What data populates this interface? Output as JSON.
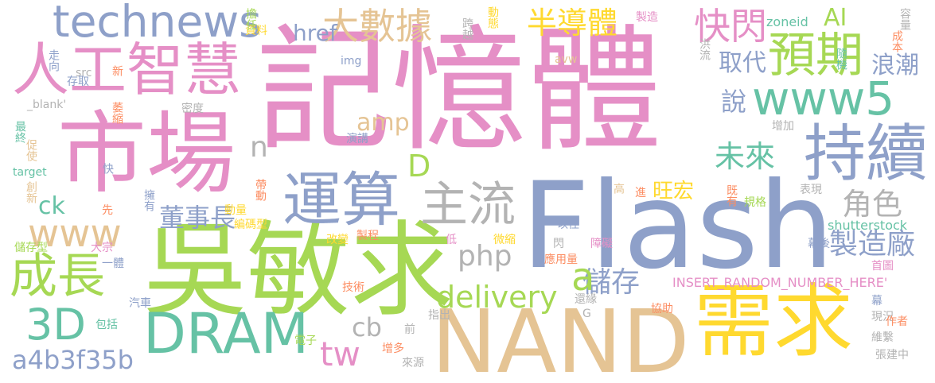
{
  "palette": {
    "pink": "#e58fc6",
    "purple": "#8ea0c9",
    "green": "#a6d854",
    "yellow": "#ffd92f",
    "tan": "#e5c494",
    "teal": "#66c2a5",
    "orange": "#fc8d62",
    "gray": "#b3b3b3"
  },
  "words": [
    {
      "text": "記憶體",
      "color": "pink"
    },
    {
      "text": "Flash",
      "color": "purple"
    },
    {
      "text": "吳敏求",
      "color": "green"
    },
    {
      "text": "NAND",
      "color": "tan"
    },
    {
      "text": "市場",
      "color": "pink"
    },
    {
      "text": "需求",
      "color": "yellow"
    },
    {
      "text": "人工智慧",
      "color": "pink"
    },
    {
      "text": "technews",
      "color": "purple"
    },
    {
      "text": "DRAM",
      "color": "teal"
    },
    {
      "text": "持續",
      "color": "purple"
    },
    {
      "text": "運算",
      "color": "purple"
    },
    {
      "text": "www5",
      "color": "teal"
    },
    {
      "text": "預期",
      "color": "green"
    },
    {
      "text": "主流",
      "color": "gray"
    },
    {
      "text": "成長",
      "color": "green"
    },
    {
      "text": "3D",
      "color": "teal"
    },
    {
      "text": "www",
      "color": "tan"
    },
    {
      "text": "大數據",
      "color": "tan"
    },
    {
      "text": "半導體",
      "color": "yellow"
    },
    {
      "text": "快閃",
      "color": "pink"
    },
    {
      "text": "delivery",
      "color": "green"
    },
    {
      "text": "a4b3f35b",
      "color": "purple"
    },
    {
      "text": "tw",
      "color": "pink"
    },
    {
      "text": "php",
      "color": "gray"
    },
    {
      "text": "角色",
      "color": "gray"
    },
    {
      "text": "製造廠",
      "color": "purple"
    },
    {
      "text": "未來",
      "color": "teal"
    },
    {
      "text": "儲存",
      "color": "purple"
    },
    {
      "text": "董事長",
      "color": "purple"
    },
    {
      "text": "AI",
      "color": "green"
    },
    {
      "text": "取代",
      "color": "purple"
    },
    {
      "text": "浪潮",
      "color": "purple"
    },
    {
      "text": "href",
      "color": "purple"
    },
    {
      "text": "旺宏",
      "color": "yellow"
    },
    {
      "text": "ck",
      "color": "teal"
    },
    {
      "text": "amp",
      "color": "tan"
    },
    {
      "text": "說",
      "color": "purple"
    },
    {
      "text": "n",
      "color": "gray"
    },
    {
      "text": "a",
      "color": "green"
    },
    {
      "text": "D",
      "color": "green"
    },
    {
      "text": "cb",
      "color": "gray"
    },
    {
      "text": "shutterstock",
      "color": "teal"
    },
    {
      "text": "INSERT_RANDOM_NUMBER_HERE'",
      "color": "pink"
    },
    {
      "text": "zoneid",
      "color": "teal"
    },
    {
      "text": "擔任",
      "color": "green"
    },
    {
      "text": "資料",
      "color": "yellow"
    },
    {
      "text": "動態",
      "color": "yellow"
    },
    {
      "text": "跨越",
      "color": "gray"
    },
    {
      "text": "製造",
      "color": "pink"
    },
    {
      "text": "隨機",
      "color": "teal"
    },
    {
      "text": "容量",
      "color": "gray"
    },
    {
      "text": "成本",
      "color": "orange"
    },
    {
      "text": "洪流",
      "color": "gray"
    },
    {
      "text": "走向",
      "color": "purple"
    },
    {
      "text": "src",
      "color": "gray"
    },
    {
      "text": "存取",
      "color": "purple"
    },
    {
      "text": "新",
      "color": "orange"
    },
    {
      "text": "img",
      "color": "purple"
    },
    {
      "text": "avw",
      "color": "tan"
    },
    {
      "text": "_blank'",
      "color": "gray"
    },
    {
      "text": "萎縮",
      "color": "orange"
    },
    {
      "text": "密度",
      "color": "gray"
    },
    {
      "text": "最終",
      "color": "teal"
    },
    {
      "text": "促使",
      "color": "tan"
    },
    {
      "text": "演講",
      "color": "purple"
    },
    {
      "text": "增加",
      "color": "gray"
    },
    {
      "text": "target",
      "color": "teal"
    },
    {
      "text": "快",
      "color": "purple"
    },
    {
      "text": "創新",
      "color": "tan"
    },
    {
      "text": "擁有",
      "color": "purple"
    },
    {
      "text": "帶動",
      "color": "orange"
    },
    {
      "text": "高",
      "color": "tan"
    },
    {
      "text": "進",
      "color": "orange"
    },
    {
      "text": "既有",
      "color": "orange"
    },
    {
      "text": "表現",
      "color": "gray"
    },
    {
      "text": "規格",
      "color": "green"
    },
    {
      "text": "先",
      "color": "orange"
    },
    {
      "text": "動量",
      "color": "yellow"
    },
    {
      "text": "編碼型",
      "color": "yellow"
    },
    {
      "text": "以往",
      "color": "purple"
    },
    {
      "text": "儲存型",
      "color": "green"
    },
    {
      "text": "大宗",
      "color": "pink"
    },
    {
      "text": "一體",
      "color": "purple"
    },
    {
      "text": "改變",
      "color": "yellow"
    },
    {
      "text": "製程",
      "color": "orange"
    },
    {
      "text": "低",
      "color": "pink"
    },
    {
      "text": "微縮",
      "color": "yellow"
    },
    {
      "text": "閃",
      "color": "gray"
    },
    {
      "text": "障礙",
      "color": "pink"
    },
    {
      "text": "幕後",
      "color": "purple"
    },
    {
      "text": "應用量",
      "color": "orange"
    },
    {
      "text": "首圖",
      "color": "pink"
    },
    {
      "text": "技術",
      "color": "orange"
    },
    {
      "text": "汽車",
      "color": "purple"
    },
    {
      "text": "包括",
      "color": "teal"
    },
    {
      "text": "指出",
      "color": "gray"
    },
    {
      "text": "前",
      "color": "gray"
    },
    {
      "text": "G",
      "color": "gray"
    },
    {
      "text": "還緣",
      "color": "gray"
    },
    {
      "text": "協助",
      "color": "orange"
    },
    {
      "text": "幕",
      "color": "purple"
    },
    {
      "text": "現況",
      "color": "gray"
    },
    {
      "text": "作者",
      "color": "orange"
    },
    {
      "text": "電子",
      "color": "green"
    },
    {
      "text": "增多",
      "color": "orange"
    },
    {
      "text": "維繫",
      "color": "gray"
    },
    {
      "text": "來源",
      "color": "gray"
    },
    {
      "text": "張建中",
      "color": "gray"
    }
  ]
}
